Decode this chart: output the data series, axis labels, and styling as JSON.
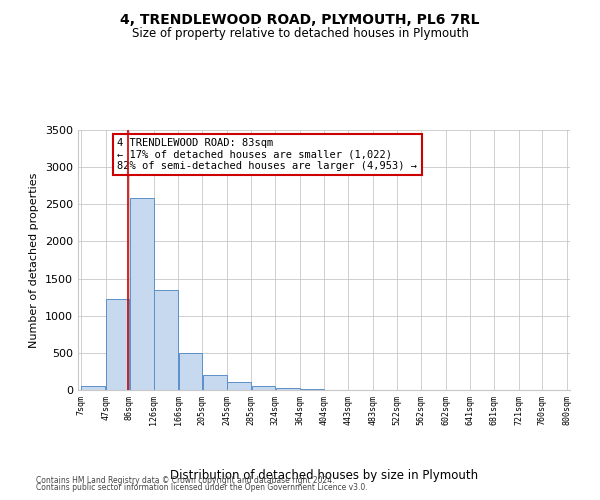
{
  "title": "4, TRENDLEWOOD ROAD, PLYMOUTH, PL6 7RL",
  "subtitle": "Size of property relative to detached houses in Plymouth",
  "xlabel": "Distribution of detached houses by size in Plymouth",
  "ylabel": "Number of detached properties",
  "footnote1": "Contains HM Land Registry data © Crown copyright and database right 2024.",
  "footnote2": "Contains public sector information licensed under the Open Government Licence v3.0.",
  "annotation_line1": "4 TRENDLEWOOD ROAD: 83sqm",
  "annotation_line2": "← 17% of detached houses are smaller (1,022)",
  "annotation_line3": "82% of semi-detached houses are larger (4,953) →",
  "property_size": 83,
  "bar_edge_color": "#5b8fc9",
  "bar_face_color": "#c7d9ef",
  "vline_color": "#cc0000",
  "annotation_box_edge": "#cc0000",
  "background_color": "#ffffff",
  "grid_color": "#c8c8c8",
  "bins": [
    7,
    47,
    86,
    126,
    166,
    205,
    245,
    285,
    324,
    364,
    404,
    443,
    483,
    522,
    562,
    602,
    641,
    681,
    721,
    760,
    800
  ],
  "bar_heights": [
    50,
    1230,
    2590,
    1350,
    500,
    200,
    110,
    50,
    30,
    15,
    5,
    5,
    0,
    0,
    0,
    0,
    0,
    0,
    0,
    0
  ],
  "ylim": [
    0,
    3500
  ],
  "yticks": [
    0,
    500,
    1000,
    1500,
    2000,
    2500,
    3000,
    3500
  ]
}
